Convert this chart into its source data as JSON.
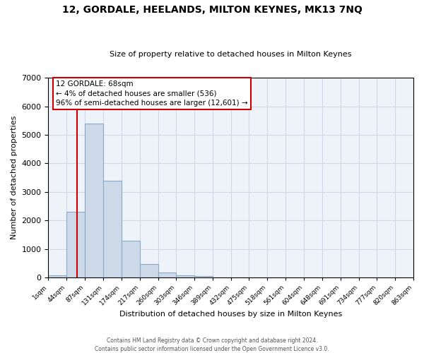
{
  "title": "12, GORDALE, HEELANDS, MILTON KEYNES, MK13 7NQ",
  "subtitle": "Size of property relative to detached houses in Milton Keynes",
  "xlabel": "Distribution of detached houses by size in Milton Keynes",
  "ylabel": "Number of detached properties",
  "bar_color": "#cdd9e8",
  "bar_edge_color": "#8aaac8",
  "bin_edges": [
    1,
    44,
    87,
    131,
    174,
    217,
    260,
    303,
    346,
    389,
    432,
    475,
    518,
    561,
    604,
    648,
    691,
    734,
    777,
    820,
    863
  ],
  "bar_heights": [
    75,
    2300,
    5400,
    3400,
    1300,
    480,
    190,
    90,
    55,
    20,
    0,
    0,
    0,
    0,
    0,
    0,
    0,
    0,
    0,
    0
  ],
  "property_size": 68,
  "red_line_color": "#cc0000",
  "annotation_line1": "12 GORDALE: 68sqm",
  "annotation_line2": "← 4% of detached houses are smaller (536)",
  "annotation_line3": "96% of semi-detached houses are larger (12,601) →",
  "annotation_box_color": "#ffffff",
  "annotation_box_edge_color": "#cc0000",
  "ylim": [
    0,
    7000
  ],
  "grid_color": "#d0d8e8",
  "footer": "Contains HM Land Registry data © Crown copyright and database right 2024.\nContains public sector information licensed under the Open Government Licence v3.0.",
  "background_color": "#eef2f9"
}
